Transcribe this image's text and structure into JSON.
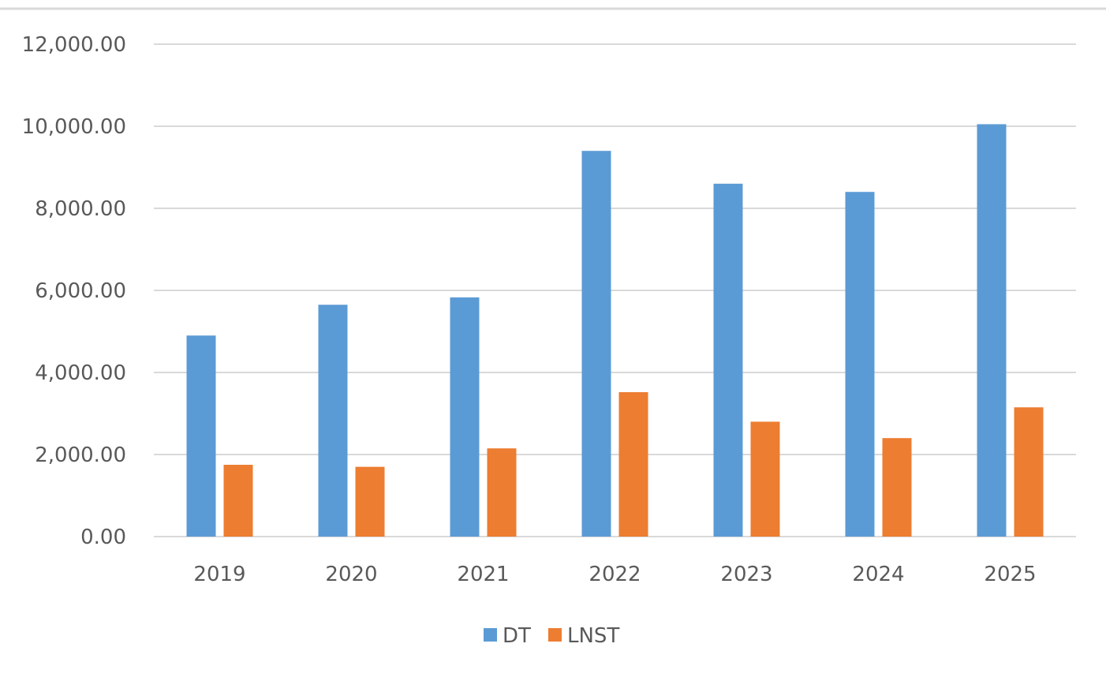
{
  "chart_data": {
    "type": "bar",
    "title": "",
    "xlabel": "",
    "ylabel": "",
    "categories": [
      "2019",
      "2020",
      "2021",
      "2022",
      "2023",
      "2024",
      "2025"
    ],
    "series": [
      {
        "name": "DT",
        "color": "#5b9bd5",
        "values": [
          4900,
          5650,
          5830,
          9400,
          8600,
          8400,
          10050
        ]
      },
      {
        "name": "LNST",
        "color": "#ed7d31",
        "values": [
          1750,
          1700,
          2150,
          3520,
          2800,
          2400,
          3150
        ]
      }
    ],
    "ylim": [
      0,
      12000
    ],
    "yticks": [
      "0.00",
      "2,000.00",
      "4,000.00",
      "6,000.00",
      "8,000.00",
      "10,000.00",
      "12,000.00"
    ],
    "ytick_values": [
      0,
      2000,
      4000,
      6000,
      8000,
      10000,
      12000
    ],
    "grid": true,
    "legend_position": "bottom",
    "colors": {
      "grid": "#d9d9d9",
      "axis_text": "#595959",
      "top_border": "#d9d9d9"
    }
  }
}
